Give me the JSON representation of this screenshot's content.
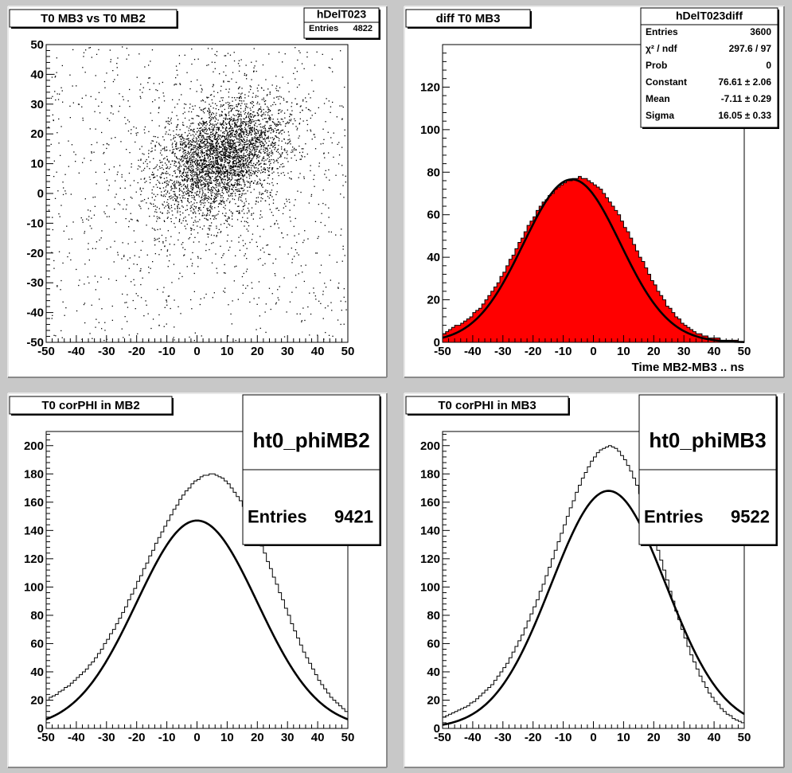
{
  "chart_data": [
    {
      "panel": "top-left",
      "type": "scatter",
      "title": "T0 MB3 vs T0 MB2",
      "stats": {
        "name": "hDelT023",
        "rows": [
          {
            "label": "Entries",
            "value": "4822"
          }
        ]
      },
      "xlim": [
        -50,
        50
      ],
      "ylim": [
        -50,
        50
      ],
      "xticks": [
        "-50",
        "-40",
        "-30",
        "-20",
        "-10",
        "0",
        "10",
        "20",
        "30",
        "40",
        "50"
      ],
      "yticks": [
        "-50",
        "-40",
        "-30",
        "-20",
        "-10",
        "0",
        "10",
        "20",
        "30",
        "40",
        "50"
      ],
      "xlabel": "",
      "ylabel": "",
      "points_shown": 4822,
      "cluster": {
        "center_x": 8,
        "center_y": 12,
        "sigma_major": 12,
        "sigma_minor": 8,
        "correlation": "positive"
      },
      "marker_color": "#000000"
    },
    {
      "panel": "top-right",
      "type": "bar",
      "title": "diff T0 MB3",
      "stats": {
        "name": "hDelT023diff",
        "rows": [
          {
            "label": "Entries",
            "value": "3600"
          },
          {
            "label": "χ² / ndf",
            "value": "297.6 / 97"
          },
          {
            "label": "Prob",
            "value": "0"
          },
          {
            "label": "Constant",
            "value": "76.61 ± 2.06"
          },
          {
            "label": "Mean",
            "value": "-7.11 ± 0.29"
          },
          {
            "label": "Sigma",
            "value": "16.05 ± 0.33"
          }
        ]
      },
      "xlabel": "Time MB2-MB3  ..  ns",
      "ylabel": "",
      "xlim": [
        -50,
        50
      ],
      "ylim": [
        0,
        140
      ],
      "xticks": [
        "-50",
        "-40",
        "-30",
        "-20",
        "-10",
        "0",
        "10",
        "20",
        "30",
        "40",
        "50"
      ],
      "yticks": [
        "0",
        "20",
        "40",
        "60",
        "80",
        "100",
        "120"
      ],
      "bin_start": -50,
      "bin_width": 1,
      "values": [
        4,
        5,
        6,
        7,
        8,
        8,
        9,
        10,
        11,
        12,
        14,
        15,
        16,
        18,
        20,
        22,
        24,
        26,
        28,
        31,
        33,
        36,
        39,
        41,
        44,
        47,
        49,
        52,
        55,
        57,
        59,
        62,
        64,
        66,
        67,
        69,
        70,
        72,
        73,
        74,
        75,
        76,
        76,
        77,
        77,
        78,
        77,
        77,
        76,
        75,
        74,
        73,
        72,
        70,
        68,
        66,
        64,
        62,
        60,
        57,
        54,
        52,
        49,
        46,
        43,
        40,
        38,
        35,
        32,
        29,
        27,
        24,
        22,
        20,
        17,
        16,
        14,
        12,
        11,
        9,
        8,
        7,
        6,
        5,
        4,
        4,
        3,
        3,
        2,
        2,
        2,
        2,
        1,
        1,
        1,
        1,
        1,
        1,
        0,
        0
      ],
      "fit": {
        "constant": 76.61,
        "mean": -7.11,
        "sigma": 16.05
      },
      "fill_color": "#ff0000"
    },
    {
      "panel": "bottom-left",
      "type": "bar",
      "title": "T0 corPHI in MB2",
      "stats": {
        "name": "ht0_phiMB2",
        "rows": [
          {
            "label": "Entries",
            "value": "9421"
          }
        ]
      },
      "xlabel": "",
      "ylabel": "",
      "xlim": [
        -50,
        50
      ],
      "ylim": [
        0,
        210
      ],
      "xticks": [
        "-50",
        "-40",
        "-30",
        "-20",
        "-10",
        "0",
        "10",
        "20",
        "30",
        "40",
        "50"
      ],
      "yticks": [
        "0",
        "20",
        "40",
        "60",
        "80",
        "100",
        "120",
        "140",
        "160",
        "180",
        "200"
      ],
      "bin_start": -50,
      "bin_width": 1,
      "values": [
        20,
        22,
        23,
        24,
        26,
        27,
        29,
        30,
        32,
        34,
        36,
        38,
        40,
        42,
        45,
        47,
        50,
        53,
        56,
        60,
        63,
        67,
        70,
        74,
        78,
        82,
        86,
        91,
        95,
        99,
        104,
        108,
        113,
        117,
        122,
        126,
        131,
        135,
        139,
        143,
        147,
        151,
        155,
        158,
        162,
        165,
        168,
        170,
        173,
        175,
        176,
        178,
        179,
        179,
        180,
        180,
        179,
        178,
        177,
        175,
        173,
        170,
        167,
        164,
        161,
        157,
        153,
        148,
        144,
        139,
        134,
        129,
        124,
        118,
        113,
        107,
        102,
        96,
        91,
        85,
        80,
        74,
        69,
        64,
        59,
        54,
        50,
        46,
        42,
        38,
        34,
        31,
        28,
        25,
        22,
        20,
        18,
        16,
        14,
        12
      ],
      "fit": {
        "constant": 147,
        "mean": 0,
        "sigma": 20
      },
      "fill_color": "none"
    },
    {
      "panel": "bottom-right",
      "type": "bar",
      "title": "T0 corPHI in MB3",
      "stats": {
        "name": "ht0_phiMB3",
        "rows": [
          {
            "label": "Entries",
            "value": "9522"
          }
        ]
      },
      "xlabel": "",
      "ylabel": "",
      "xlim": [
        -50,
        50
      ],
      "ylim": [
        0,
        210
      ],
      "xticks": [
        "-50",
        "-40",
        "-30",
        "-20",
        "-10",
        "0",
        "10",
        "20",
        "30",
        "40",
        "50"
      ],
      "yticks": [
        "0",
        "20",
        "40",
        "60",
        "80",
        "100",
        "120",
        "140",
        "160",
        "180",
        "200"
      ],
      "bin_start": -50,
      "bin_width": 1,
      "values": [
        8,
        9,
        10,
        11,
        12,
        13,
        14,
        15,
        16,
        18,
        19,
        21,
        23,
        25,
        27,
        29,
        31,
        34,
        37,
        40,
        43,
        46,
        50,
        54,
        58,
        62,
        66,
        71,
        76,
        81,
        86,
        91,
        97,
        102,
        108,
        114,
        120,
        126,
        132,
        138,
        144,
        150,
        156,
        161,
        167,
        172,
        177,
        181,
        185,
        189,
        192,
        195,
        197,
        198,
        199,
        200,
        199,
        198,
        196,
        193,
        190,
        186,
        182,
        177,
        172,
        166,
        160,
        154,
        147,
        140,
        133,
        126,
        119,
        112,
        105,
        97,
        90,
        83,
        77,
        70,
        64,
        58,
        52,
        47,
        42,
        37,
        33,
        29,
        25,
        22,
        19,
        17,
        14,
        12,
        10,
        9,
        7,
        6,
        5,
        4
      ],
      "fit": {
        "constant": 168,
        "mean": 5,
        "sigma": 19
      },
      "fill_color": "none"
    }
  ]
}
